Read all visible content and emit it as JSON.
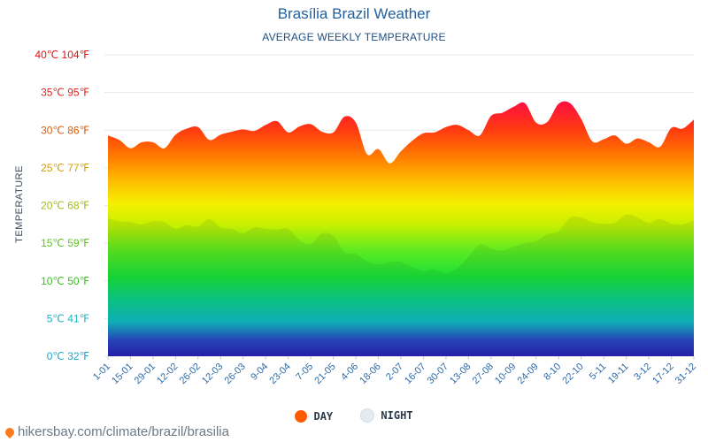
{
  "header": {
    "title": "Brasília Brazil Weather",
    "subtitle": "AVERAGE WEEKLY TEMPERATURE"
  },
  "legend": {
    "day_label": "DAY",
    "night_label": "NIGHT",
    "day_color": "#ff5a00",
    "night_color": "#e6ebf0"
  },
  "footer": {
    "text": "hikersbay.com/climate/brazil/brasilia"
  },
  "chart_data": {
    "type": "area",
    "title": "Brasília Brazil Weather",
    "subtitle": "AVERAGE WEEKLY TEMPERATURE",
    "ylabel": "TEMPERATURE",
    "ylim": [
      0,
      40
    ],
    "y_ticks": [
      {
        "value": 0,
        "label": "0℃ 32℉",
        "color": "#1aa8d0"
      },
      {
        "value": 5,
        "label": "5℃ 41℉",
        "color": "#18b4c4"
      },
      {
        "value": 10,
        "label": "10℃ 50℉",
        "color": "#36c21c"
      },
      {
        "value": 15,
        "label": "15℃ 59℉",
        "color": "#5cc41a"
      },
      {
        "value": 20,
        "label": "20℃ 68℉",
        "color": "#a5bc10"
      },
      {
        "value": 25,
        "label": "25℃ 77℉",
        "color": "#d6a000"
      },
      {
        "value": 30,
        "label": "30℃ 86℉",
        "color": "#e05a00"
      },
      {
        "value": 35,
        "label": "35℃ 95℉",
        "color": "#e02020"
      },
      {
        "value": 40,
        "label": "40℃ 104℉",
        "color": "#e01010"
      }
    ],
    "x_labels": [
      "1-01",
      "15-01",
      "29-01",
      "12-02",
      "26-02",
      "12-03",
      "26-03",
      "9-04",
      "23-04",
      "7-05",
      "21-05",
      "4-06",
      "18-06",
      "2-07",
      "16-07",
      "30-07",
      "13-08",
      "27-08",
      "10-09",
      "24-09",
      "8-10",
      "22-10",
      "5-11",
      "19-11",
      "3-12",
      "17-12",
      "31-12"
    ],
    "grid": true,
    "legend_position": "bottom",
    "series": [
      {
        "name": "DAY",
        "values": [
          29.3,
          28.7,
          27.6,
          28.4,
          28.4,
          27.6,
          29.4,
          30.2,
          30.4,
          28.7,
          29.4,
          29.8,
          30.1,
          29.9,
          30.7,
          31.2,
          29.7,
          30.5,
          30.8,
          29.8,
          29.7,
          31.8,
          31.0,
          26.8,
          27.5,
          25.6,
          27.2,
          28.6,
          29.6,
          29.7,
          30.4,
          30.7,
          30.0,
          29.3,
          31.9,
          32.3,
          33.1,
          33.6,
          31.0,
          31.1,
          33.5,
          33.6,
          31.5,
          28.5,
          28.8,
          29.3,
          28.2,
          28.9,
          28.4,
          27.8,
          30.3,
          30.2,
          31.4
        ]
      },
      {
        "name": "NIGHT",
        "values": [
          18.3,
          17.9,
          17.8,
          17.5,
          17.9,
          17.8,
          16.9,
          17.4,
          17.2,
          18.2,
          17.1,
          16.9,
          16.3,
          17.1,
          16.9,
          16.8,
          16.9,
          15.4,
          14.9,
          16.3,
          16.0,
          13.8,
          13.6,
          12.6,
          12.2,
          12.5,
          12.5,
          11.8,
          11.3,
          11.5,
          11.0,
          11.7,
          13.2,
          14.8,
          14.3,
          14.0,
          14.5,
          15.0,
          15.3,
          16.2,
          16.6,
          18.4,
          18.4,
          17.8,
          17.6,
          17.7,
          18.8,
          18.4,
          17.7,
          18.2,
          17.6,
          17.5,
          18.0
        ]
      }
    ]
  }
}
